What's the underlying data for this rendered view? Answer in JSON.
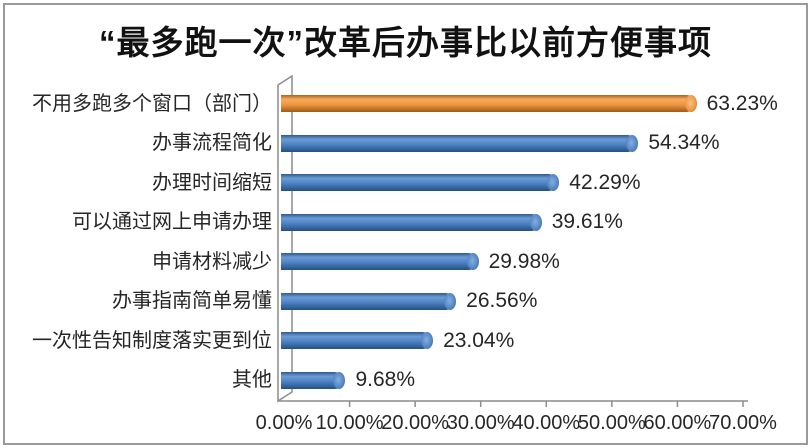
{
  "chart_data": {
    "type": "bar",
    "orientation": "horizontal",
    "style": "3d-cylinder",
    "title": "“最多跑一次”改革后办事比以前方便事项",
    "categories": [
      "不用多跑多个窗口（部门）",
      "办事流程简化",
      "办理时间缩短",
      "可以通过网上申请办理",
      "申请材料减少",
      "办事指南简单易懂",
      "一次性告知制度落实更到位",
      "其他"
    ],
    "values": [
      63.23,
      54.34,
      42.29,
      39.61,
      29.98,
      26.56,
      23.04,
      9.68
    ],
    "data_labels": [
      "63.23%",
      "54.34%",
      "42.29%",
      "39.61%",
      "29.98%",
      "26.56%",
      "23.04%",
      "9.68%"
    ],
    "x_ticks": [
      "0.00%",
      "10.00%",
      "20.00%",
      "30.00%",
      "40.00%",
      "50.00%",
      "60.00%",
      "70.00%"
    ],
    "xlim": [
      0,
      70
    ],
    "xlabel": "",
    "ylabel": "",
    "grid": false,
    "legend": "none",
    "colors": {
      "bar_primary": "#4A80C2",
      "bar_highlight": "#EE9440",
      "axis_line": "#8c8c8c",
      "frame_border": "#9a9a9a",
      "text": "#262626"
    }
  }
}
